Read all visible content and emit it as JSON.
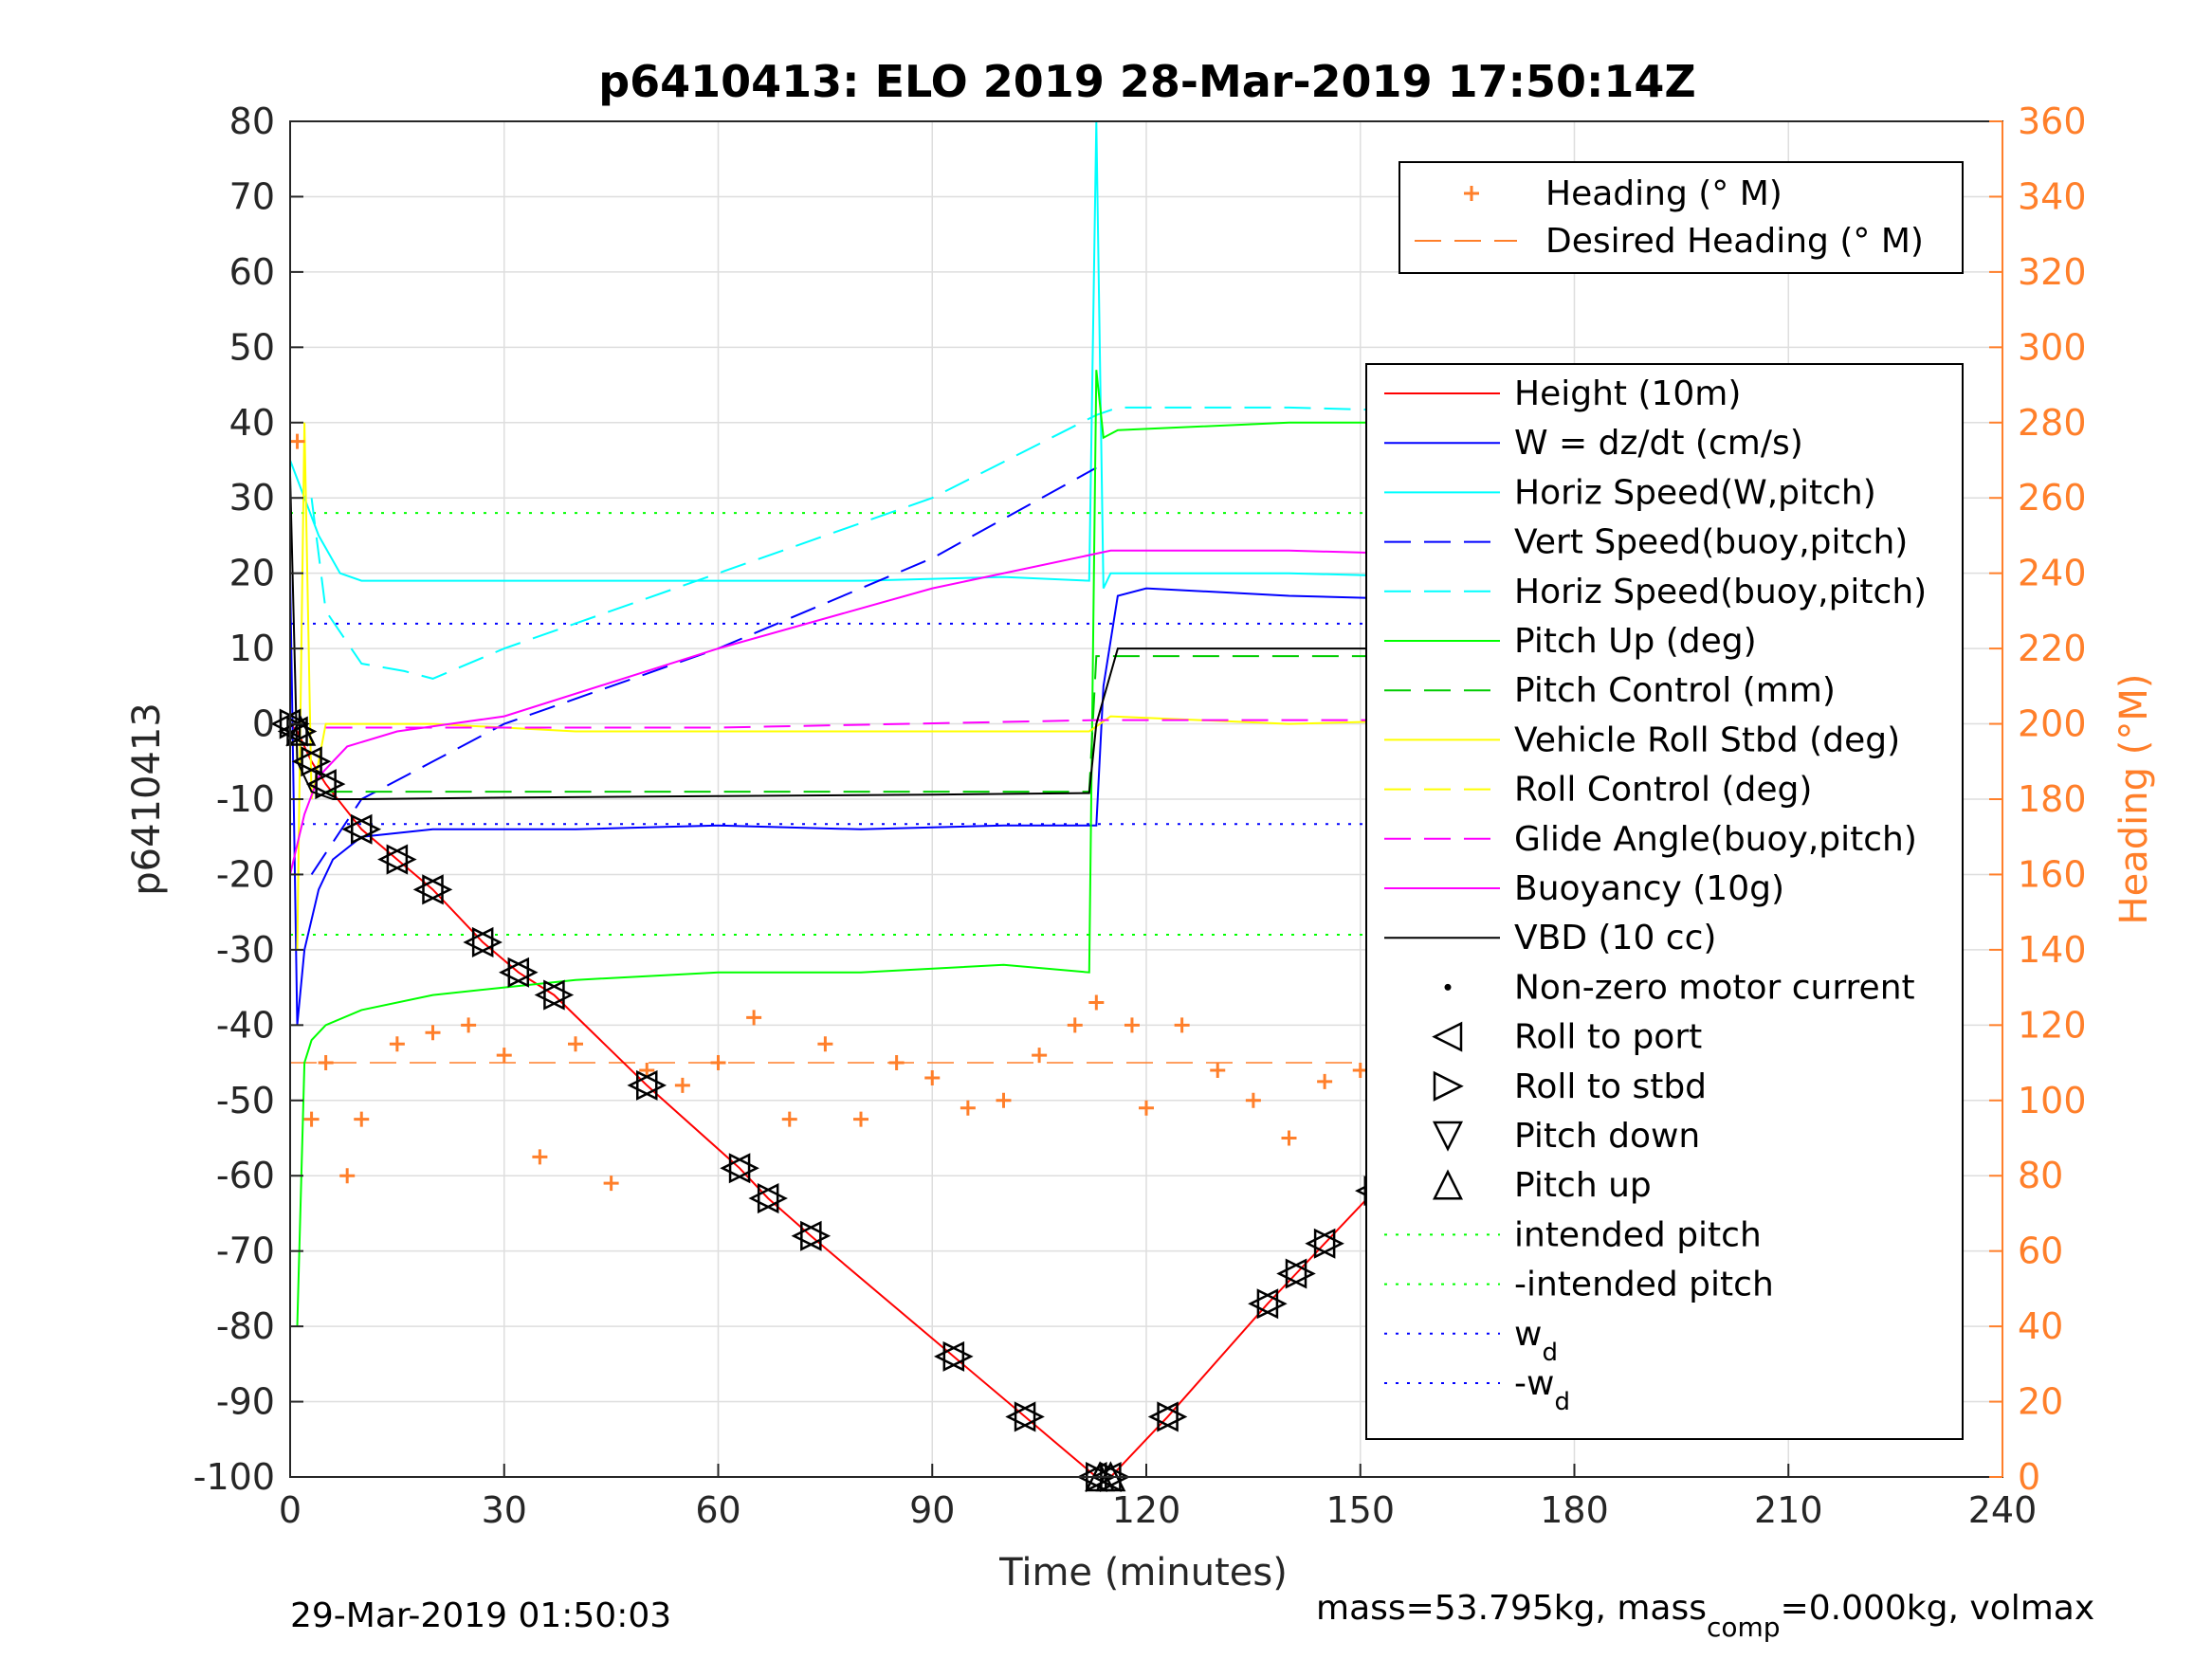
{
  "chart_data": {
    "type": "line",
    "title": "p6410413: ELO 2019 28-Mar-2019 17:50:14Z",
    "xlabel": "Time (minutes)",
    "ylabel": "p6410413",
    "y2label": "Heading (°M)",
    "xlim": [
      0,
      240
    ],
    "ylim": [
      -100,
      80
    ],
    "y2lim": [
      0,
      360
    ],
    "xticks": [
      "0",
      "30",
      "60",
      "90",
      "120",
      "150",
      "180",
      "210",
      "240"
    ],
    "yticks": [
      "80",
      "70",
      "60",
      "50",
      "40",
      "30",
      "20",
      "10",
      "0",
      "-10",
      "-20",
      "-30",
      "-40",
      "-50",
      "-60",
      "-70",
      "-80",
      "-90",
      "-100"
    ],
    "y2ticks": [
      "360",
      "340",
      "320",
      "300",
      "280",
      "260",
      "240",
      "220",
      "200",
      "180",
      "160",
      "140",
      "120",
      "100",
      "80",
      "60",
      "40",
      "20",
      "0"
    ],
    "grid": true,
    "legend_heading": [
      {
        "label": "Heading (° M)",
        "color": "#ff7f2a",
        "style": "plus"
      },
      {
        "label": "Desired Heading (° M)",
        "color": "#ff7f2a",
        "style": "dashed"
      }
    ],
    "legend_main": [
      {
        "label": "Height (10m)",
        "color": "#ff0000",
        "style": "solid"
      },
      {
        "label": "W = dz/dt (cm/s)",
        "color": "#0000ff",
        "style": "solid"
      },
      {
        "label": "Horiz Speed(W,pitch)",
        "color": "#00ffff",
        "style": "solid"
      },
      {
        "label": "Vert Speed(buoy,pitch)",
        "color": "#0000ff",
        "style": "dashed"
      },
      {
        "label": "Horiz Speed(buoy,pitch)",
        "color": "#00ffff",
        "style": "dashed"
      },
      {
        "label": "Pitch Up (deg)",
        "color": "#00ff00",
        "style": "solid"
      },
      {
        "label": "Pitch Control (mm)",
        "color": "#00cc00",
        "style": "dashed"
      },
      {
        "label": "Vehicle Roll Stbd (deg)",
        "color": "#ffff00",
        "style": "solid"
      },
      {
        "label": "Roll Control (deg)",
        "color": "#ffff00",
        "style": "dashed"
      },
      {
        "label": "Glide Angle(buoy,pitch)",
        "color": "#ff00ff",
        "style": "dashed"
      },
      {
        "label": "Buoyancy (10g)",
        "color": "#ff00ff",
        "style": "solid"
      },
      {
        "label": "VBD (10 cc)",
        "color": "#000000",
        "style": "solid"
      },
      {
        "label": "Non-zero motor current",
        "color": "#000000",
        "style": "dot"
      },
      {
        "label": "Roll to port",
        "color": "#000000",
        "style": "tri-left"
      },
      {
        "label": "Roll to stbd",
        "color": "#000000",
        "style": "tri-right"
      },
      {
        "label": "Pitch down",
        "color": "#000000",
        "style": "tri-down"
      },
      {
        "label": "Pitch up",
        "color": "#000000",
        "style": "tri-up"
      },
      {
        "label": "intended pitch",
        "color": "#00ff00",
        "style": "dotted"
      },
      {
        "label": "-intended pitch",
        "color": "#00ff00",
        "style": "dotted"
      },
      {
        "label": "w",
        "sub": "d",
        "color": "#0000ff",
        "style": "dotted"
      },
      {
        "label": "-w",
        "sub": "d",
        "color": "#0000ff",
        "style": "dotted"
      }
    ],
    "reference_lines": {
      "intended_pitch": 28,
      "neg_intended_pitch": -28,
      "w_d": 13.3,
      "neg_w_d": -13.3,
      "desired_heading": 110
    },
    "series": [
      {
        "name": "Height (10m)",
        "x": [
          0,
          1,
          3,
          5,
          10,
          15,
          20,
          27,
          32,
          37,
          50,
          63,
          67,
          73,
          93,
          103,
          113,
          115,
          123,
          137,
          141,
          145,
          152,
          157,
          162,
          166,
          171,
          178,
          186,
          195,
          202,
          210,
          216,
          220,
          225
        ],
        "y": [
          0,
          -1,
          -5,
          -8,
          -14,
          -18,
          -22,
          -29,
          -33,
          -36,
          -48,
          -59,
          -63,
          -68,
          -84,
          -92,
          -100,
          -100,
          -92,
          -77,
          -73,
          -69,
          -62,
          -57,
          -52,
          -47,
          -43,
          -35,
          -29,
          -22,
          -17,
          -10,
          -5,
          -3,
          0
        ]
      },
      {
        "name": "W = dz/dt (cm/s)",
        "x": [
          0,
          1,
          2,
          4,
          6,
          10,
          20,
          40,
          60,
          80,
          100,
          113,
          114,
          116,
          120,
          140,
          160,
          180,
          200,
          215,
          225
        ],
        "y": [
          20,
          -40,
          -30,
          -22,
          -18,
          -15,
          -14,
          -14,
          -13.5,
          -14,
          -13.5,
          -13.5,
          5,
          17,
          18,
          17,
          16.5,
          16,
          14,
          12,
          11
        ]
      },
      {
        "name": "Horiz Speed(W,pitch)",
        "x": [
          0,
          2,
          4,
          7,
          10,
          20,
          40,
          60,
          80,
          100,
          112,
          113,
          114,
          115,
          118,
          140,
          160,
          180,
          200,
          220,
          225
        ],
        "y": [
          35,
          30,
          25,
          20,
          19,
          19,
          19,
          19,
          19,
          19.5,
          19,
          80,
          18,
          20,
          20,
          20,
          19.5,
          19,
          18,
          17,
          16
        ]
      },
      {
        "name": "Vert Speed(buoy,pitch)",
        "x": [
          3,
          10,
          20,
          30,
          60,
          90,
          113
        ],
        "y": [
          -20,
          -10,
          -5,
          0,
          10,
          22,
          34
        ]
      },
      {
        "name": "Horiz Speed(buoy,pitch)",
        "x": [
          3,
          5,
          10,
          16,
          20,
          30,
          60,
          90,
          113,
          116,
          140,
          180,
          225
        ],
        "y": [
          30,
          15,
          8,
          7,
          6,
          10,
          20,
          30,
          41,
          42,
          42,
          41,
          40
        ]
      },
      {
        "name": "Pitch Up (deg)",
        "x": [
          1,
          2,
          3,
          5,
          10,
          20,
          40,
          60,
          80,
          100,
          112,
          113,
          114,
          116,
          140,
          170,
          180,
          200,
          215,
          225
        ],
        "y": [
          -80,
          -45,
          -42,
          -40,
          -38,
          -36,
          -34,
          -33,
          -33,
          -32,
          -33,
          47,
          38,
          39,
          40,
          40,
          38,
          36,
          32,
          30
        ]
      },
      {
        "name": "Pitch Control (mm)",
        "x": [
          5,
          60,
          112,
          113,
          140,
          180,
          225
        ],
        "y": [
          -9,
          -9,
          -9,
          9,
          9,
          9,
          9
        ]
      },
      {
        "name": "Vehicle Roll Stbd (deg)",
        "x": [
          1,
          2,
          3,
          5,
          10,
          20,
          40,
          60,
          80,
          100,
          112,
          115,
          140,
          180,
          225
        ],
        "y": [
          -30,
          40,
          -10,
          0,
          0,
          0,
          -1,
          -1,
          -1,
          -1,
          -1,
          1,
          0,
          1,
          2
        ]
      },
      {
        "name": "Glide Angle(buoy,pitch)",
        "x": [
          5,
          60,
          113,
          150,
          225
        ],
        "y": [
          -0.5,
          -0.5,
          0.5,
          0.5,
          0.5
        ]
      },
      {
        "name": "Buoyancy (10g)",
        "x": [
          0,
          2,
          4,
          8,
          15,
          30,
          60,
          90,
          115,
          140,
          180,
          200,
          220,
          225
        ],
        "y": [
          -20,
          -12,
          -7,
          -3,
          -1,
          1,
          10,
          18,
          23,
          23,
          22,
          21,
          24,
          27
        ]
      },
      {
        "name": "VBD (10 cc)",
        "x": [
          0,
          1,
          3,
          6,
          10,
          30,
          60,
          90,
          112,
          113,
          116,
          140,
          180,
          200,
          210,
          215,
          220,
          225
        ],
        "y": [
          33,
          -5,
          -9,
          -10,
          -10,
          -9.8,
          -9.6,
          -9.4,
          -9.2,
          0,
          10,
          10,
          10,
          11,
          20,
          22,
          30,
          40
        ]
      },
      {
        "name": "Heading (° M)",
        "axis": "right",
        "x": [
          1,
          3,
          5,
          8,
          10,
          15,
          20,
          25,
          30,
          35,
          40,
          45,
          50,
          55,
          60,
          65,
          70,
          75,
          80,
          85,
          90,
          95,
          100,
          105,
          110,
          113,
          118,
          120,
          125,
          130,
          135,
          140,
          145,
          150,
          155,
          160,
          165,
          170,
          175,
          180,
          185,
          190,
          195,
          200,
          205,
          210,
          215,
          220,
          225
        ],
        "y": [
          275,
          95,
          110,
          80,
          95,
          115,
          118,
          120,
          112,
          85,
          115,
          78,
          108,
          104,
          110,
          122,
          95,
          115,
          95,
          110,
          106,
          98,
          100,
          112,
          120,
          126,
          120,
          98,
          120,
          108,
          100,
          90,
          105,
          108,
          98,
          80,
          110,
          95,
          112,
          105,
          95,
          115,
          88,
          110,
          100,
          95,
          120,
          80,
          118
        ]
      }
    ]
  },
  "footer": {
    "timestamp": "29-Mar-2019 01:50:03",
    "mass_text_1": "mass=53.795kg, mass",
    "mass_sub": "comp",
    "mass_text_2": "=0.000kg, volmax"
  }
}
